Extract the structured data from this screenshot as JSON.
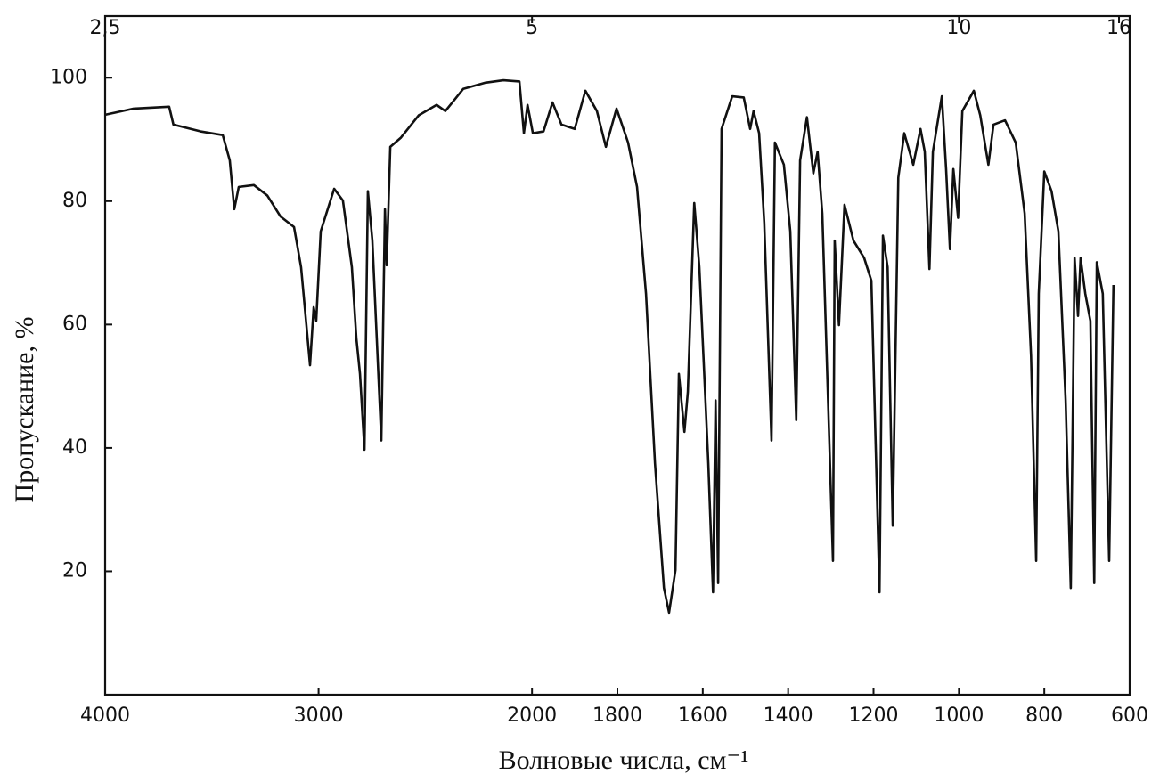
{
  "chart_data": {
    "type": "line",
    "x_label": "Волновые числа,  см⁻¹",
    "y_label": "Пропускание, %",
    "color": "#111111",
    "xlim": [
      4000,
      600
    ],
    "xticks": [
      4000,
      3000,
      2000,
      1800,
      1600,
      1400,
      1200,
      1000,
      800,
      600
    ],
    "x2ticks": [
      {
        "value": 2.5,
        "label": "2,5"
      },
      5,
      10,
      16
    ],
    "ylim": [
      0,
      110
    ],
    "yticks": [
      20,
      40,
      60,
      80,
      100
    ],
    "x": [
      4000,
      3866,
      3700,
      3680,
      3553,
      3449,
      3416,
      3395,
      3374,
      3303,
      3240,
      3178,
      3115,
      3082,
      3061,
      3040,
      3023,
      3011,
      2990,
      2927,
      2886,
      2844,
      2823,
      2806,
      2785,
      2769,
      2748,
      2706,
      2689,
      2681,
      2664,
      2614,
      2531,
      2447,
      2406,
      2322,
      2218,
      2134,
      2059,
      2038,
      2021,
      1998,
      1973,
      1952,
      1931,
      1900,
      1875,
      1848,
      1827,
      1802,
      1775,
      1754,
      1733,
      1712,
      1691,
      1679,
      1664,
      1656,
      1643,
      1635,
      1620,
      1608,
      1587,
      1576,
      1570,
      1564,
      1556,
      1531,
      1504,
      1489,
      1481,
      1468,
      1456,
      1439,
      1431,
      1410,
      1395,
      1381,
      1372,
      1356,
      1341,
      1331,
      1320,
      1295,
      1291,
      1281,
      1268,
      1247,
      1222,
      1205,
      1186,
      1178,
      1167,
      1155,
      1142,
      1128,
      1107,
      1090,
      1080,
      1069,
      1061,
      1040,
      1030,
      1021,
      1013,
      1002,
      992,
      965,
      950,
      931,
      919,
      892,
      867,
      846,
      831,
      819,
      813,
      800,
      783,
      767,
      750,
      738,
      729,
      721,
      715,
      704,
      692,
      683,
      677,
      663,
      648,
      638
    ],
    "values": [
      94.0,
      95.0,
      95.3,
      92.4,
      91.3,
      90.7,
      86.6,
      78.7,
      82.3,
      82.6,
      80.9,
      77.5,
      75.8,
      69.3,
      61.4,
      53.4,
      62.8,
      60.6,
      75.1,
      82.0,
      80.1,
      69.3,
      57.8,
      52.0,
      39.7,
      81.6,
      73.6,
      41.2,
      78.7,
      69.6,
      88.8,
      90.3,
      93.9,
      95.6,
      94.6,
      98.2,
      99.2,
      99.6,
      99.4,
      91.0,
      95.6,
      91.0,
      91.3,
      96.0,
      92.4,
      91.7,
      97.9,
      94.6,
      88.8,
      95.0,
      89.5,
      82.3,
      65.0,
      37.5,
      17.3,
      13.3,
      20.2,
      52.0,
      42.6,
      49.1,
      79.7,
      69.3,
      37.5,
      16.6,
      47.7,
      18.1,
      91.7,
      97.0,
      96.8,
      91.7,
      94.6,
      91.0,
      76.5,
      41.2,
      89.5,
      85.9,
      75.1,
      44.5,
      86.6,
      93.6,
      84.5,
      88.0,
      78.0,
      21.7,
      73.6,
      59.9,
      79.4,
      73.6,
      70.8,
      67.1,
      16.6,
      74.4,
      69.3,
      27.4,
      83.8,
      91.0,
      85.9,
      91.7,
      88.0,
      69.0,
      88.0,
      97.0,
      85.2,
      72.2,
      85.2,
      77.3,
      94.6,
      97.9,
      93.9,
      85.9,
      92.4,
      93.1,
      89.5,
      78.0,
      54.9,
      21.7,
      65.0,
      84.8,
      81.6,
      75.1,
      47.7,
      17.3,
      70.8,
      61.4,
      70.8,
      65.0,
      60.6,
      18.1,
      70.1,
      65.0,
      21.7,
      66.4
    ]
  }
}
